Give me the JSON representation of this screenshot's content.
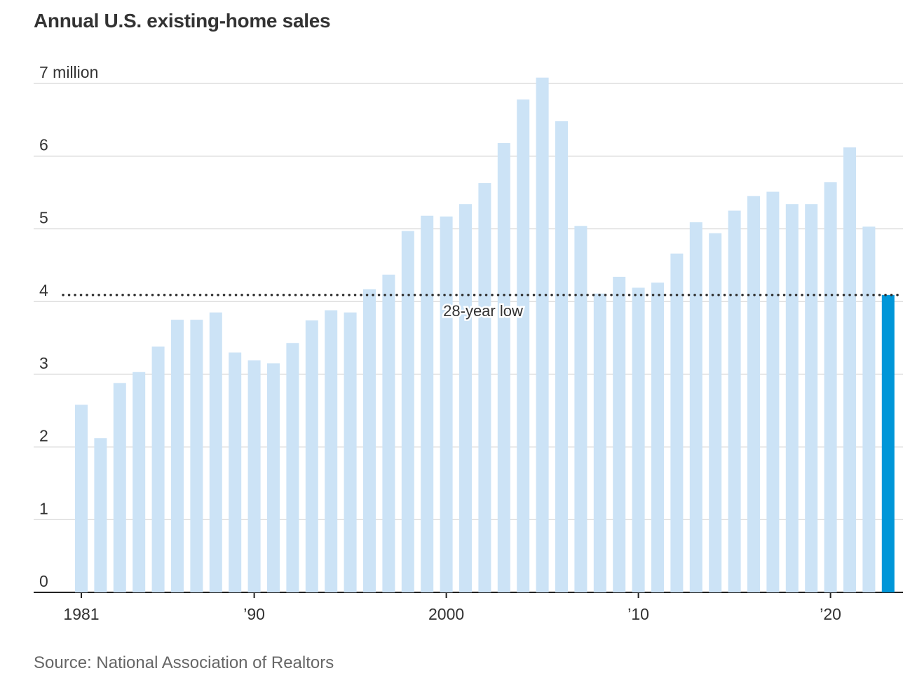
{
  "chart_data": {
    "type": "bar",
    "title": "Annual U.S. existing-home sales",
    "ylabel": "",
    "xlabel": "",
    "ylim": [
      0,
      7
    ],
    "y_ticks": [
      0,
      1,
      2,
      3,
      4,
      5,
      6,
      7
    ],
    "y_tick_labels": [
      "0",
      "1",
      "2",
      "3",
      "4",
      "5",
      "6",
      "7 million"
    ],
    "x_ticks": [
      1981,
      1990,
      2000,
      2010,
      2020
    ],
    "x_tick_labels": [
      "1981",
      "’90",
      "2000",
      "’10",
      "’20"
    ],
    "categories": [
      1981,
      1982,
      1983,
      1984,
      1985,
      1986,
      1987,
      1988,
      1989,
      1990,
      1991,
      1992,
      1993,
      1994,
      1995,
      1996,
      1997,
      1998,
      1999,
      2000,
      2001,
      2002,
      2003,
      2004,
      2005,
      2006,
      2007,
      2008,
      2009,
      2010,
      2011,
      2012,
      2013,
      2014,
      2015,
      2016,
      2017,
      2018,
      2019,
      2020,
      2021,
      2022,
      2023
    ],
    "values": [
      2.58,
      2.12,
      2.88,
      3.03,
      3.38,
      3.75,
      3.75,
      3.85,
      3.3,
      3.19,
      3.15,
      3.43,
      3.74,
      3.88,
      3.85,
      4.17,
      4.37,
      4.97,
      5.18,
      5.17,
      5.34,
      5.63,
      6.18,
      6.78,
      7.08,
      6.48,
      5.04,
      4.11,
      4.34,
      4.19,
      4.26,
      4.66,
      5.09,
      4.94,
      5.25,
      5.45,
      5.51,
      5.34,
      5.34,
      5.64,
      6.12,
      5.03,
      4.09
    ],
    "highlight_index": 42,
    "colors": {
      "bar": "#cce3f6",
      "highlight": "#0096d8",
      "grid": "#dddddd",
      "axis": "#222222",
      "reference": "#333333"
    },
    "reference_line": {
      "value": 4.09,
      "label": "28-year low",
      "style": "dotted"
    },
    "grid": true,
    "legend": "none",
    "source": "Source: National Association of Realtors"
  }
}
